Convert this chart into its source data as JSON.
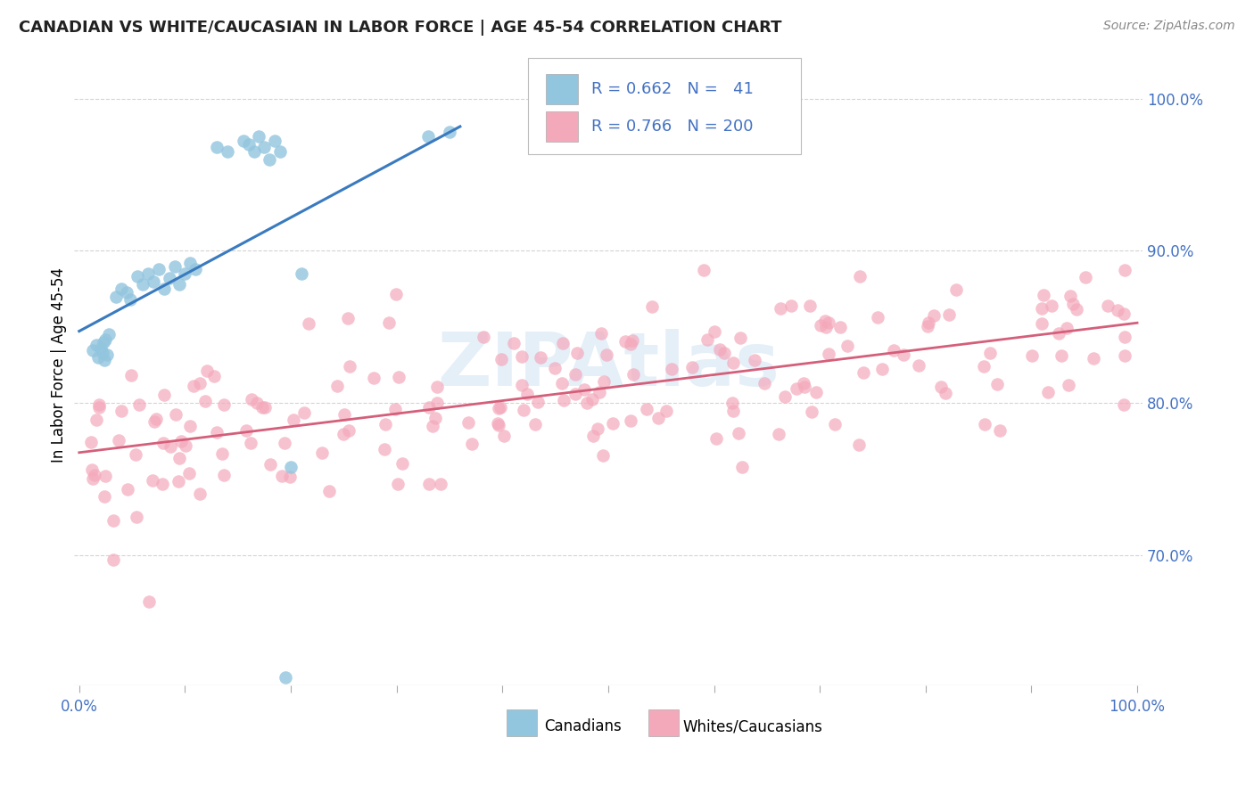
{
  "title": "CANADIAN VS WHITE/CAUCASIAN IN LABOR FORCE | AGE 45-54 CORRELATION CHART",
  "source": "Source: ZipAtlas.com",
  "ylabel": "In Labor Force | Age 45-54",
  "canadian_color": "#92c5de",
  "white_color": "#f4a9bb",
  "canadian_line_color": "#3a7abf",
  "white_line_color": "#d45f7a",
  "legend_R_canadian": "0.662",
  "legend_N_canadian": "41",
  "legend_R_white": "0.766",
  "legend_N_white": "200",
  "watermark": "ZIPAtlas",
  "canadians_label": "Canadians",
  "whites_label": "Whites/Caucasians",
  "blue_text_color": "#4472c4",
  "axis_tick_color": "#4472c4",
  "grid_color": "#d0d0d0",
  "source_color": "#888888"
}
